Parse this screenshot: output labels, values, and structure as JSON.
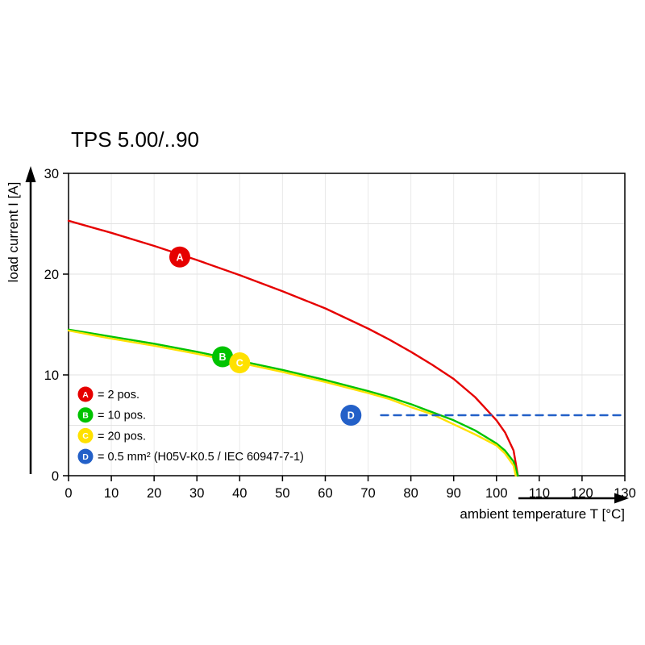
{
  "title": "TPS 5.00/..90",
  "chart_data": {
    "type": "line",
    "title": "TPS 5.00/..90",
    "xlabel": "ambient temperature T [°C]",
    "ylabel": "load current I [A]",
    "xlim": [
      0,
      130
    ],
    "ylim": [
      0,
      30
    ],
    "x_ticks": [
      0,
      10,
      20,
      30,
      40,
      50,
      60,
      70,
      80,
      90,
      100,
      110,
      120,
      130
    ],
    "y_ticks": [
      0,
      10,
      20,
      30
    ],
    "grid": {
      "show": true,
      "x_step": 10,
      "y_step": 5
    },
    "legend_position": "bottom-left-inside",
    "series": [
      {
        "key": "A",
        "name": "2 pos.",
        "color": "#e60000",
        "style": "solid",
        "points": [
          [
            0,
            25.3
          ],
          [
            10,
            24.1
          ],
          [
            20,
            22.8
          ],
          [
            30,
            21.4
          ],
          [
            40,
            19.9
          ],
          [
            50,
            18.3
          ],
          [
            60,
            16.6
          ],
          [
            70,
            14.6
          ],
          [
            75,
            13.5
          ],
          [
            80,
            12.3
          ],
          [
            85,
            11.0
          ],
          [
            90,
            9.6
          ],
          [
            95,
            7.8
          ],
          [
            100,
            5.5
          ],
          [
            102,
            4.3
          ],
          [
            104,
            2.5
          ],
          [
            105,
            0
          ]
        ]
      },
      {
        "key": "B",
        "name": "10 pos.",
        "color": "#00c300",
        "style": "solid",
        "points": [
          [
            0,
            14.5
          ],
          [
            10,
            13.8
          ],
          [
            20,
            13.1
          ],
          [
            30,
            12.3
          ],
          [
            40,
            11.4
          ],
          [
            50,
            10.5
          ],
          [
            60,
            9.5
          ],
          [
            70,
            8.4
          ],
          [
            75,
            7.8
          ],
          [
            80,
            7.1
          ],
          [
            85,
            6.3
          ],
          [
            90,
            5.5
          ],
          [
            95,
            4.5
          ],
          [
            100,
            3.2
          ],
          [
            102,
            2.5
          ],
          [
            104,
            1.4
          ],
          [
            105,
            0
          ]
        ]
      },
      {
        "key": "C",
        "name": "20 pos.",
        "color": "#ffe100",
        "style": "solid",
        "points": [
          [
            0,
            14.4
          ],
          [
            10,
            13.6
          ],
          [
            20,
            12.9
          ],
          [
            30,
            12.1
          ],
          [
            40,
            11.2
          ],
          [
            50,
            10.3
          ],
          [
            60,
            9.3
          ],
          [
            70,
            8.2
          ],
          [
            75,
            7.6
          ],
          [
            80,
            6.8
          ],
          [
            85,
            6.1
          ],
          [
            90,
            5.1
          ],
          [
            95,
            4.1
          ],
          [
            100,
            3.0
          ],
          [
            102,
            2.2
          ],
          [
            104,
            1.0
          ],
          [
            104.5,
            0
          ]
        ]
      },
      {
        "key": "D",
        "name": "0.5 mm² (H05V-K0.5 / IEC 60947-7-1)",
        "color": "#2360c8",
        "style": "dashed",
        "points": [
          [
            73,
            6
          ],
          [
            130,
            6
          ]
        ]
      }
    ],
    "markers": [
      {
        "key": "A",
        "x": 26,
        "y": 21.7,
        "color": "#e60000"
      },
      {
        "key": "B",
        "x": 36,
        "y": 11.8,
        "color": "#00c300"
      },
      {
        "key": "C",
        "x": 40,
        "y": 11.2,
        "color": "#ffe100"
      },
      {
        "key": "D",
        "x": 66,
        "y": 6,
        "color": "#2360c8"
      }
    ],
    "legend": [
      {
        "key": "A",
        "label": "= 2 pos."
      },
      {
        "key": "B",
        "label": "= 10 pos."
      },
      {
        "key": "C",
        "label": "= 20 pos."
      },
      {
        "key": "D",
        "label": "= 0.5 mm² (H05V-K0.5 / IEC 60947-7-1)"
      }
    ]
  }
}
